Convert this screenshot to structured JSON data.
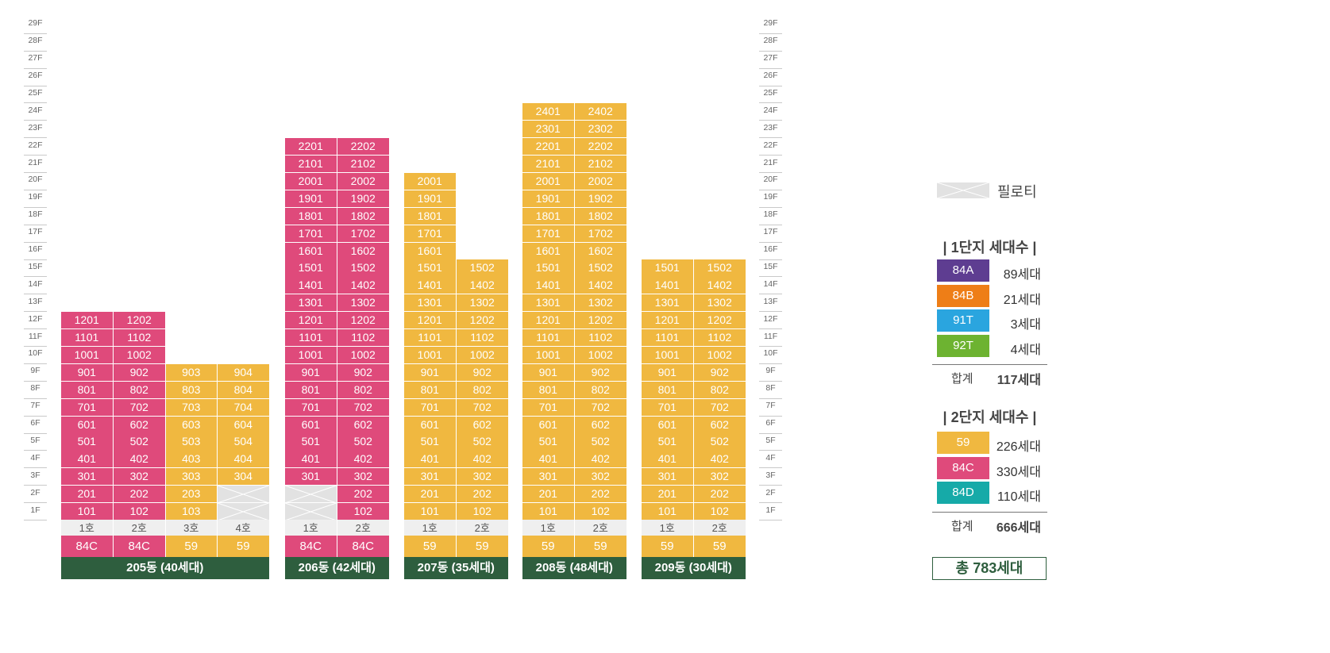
{
  "floor_labels": [
    "29F",
    "28F",
    "27F",
    "26F",
    "25F",
    "24F",
    "23F",
    "22F",
    "21F",
    "20F",
    "19F",
    "18F",
    "17F",
    "16F",
    "15F",
    "14F",
    "13F",
    "12F",
    "11F",
    "10F",
    "9F",
    "8F",
    "7F",
    "6F",
    "5F",
    "4F",
    "3F",
    "2F",
    "1F"
  ],
  "buildings": [
    {
      "name": "205동 (40세대)",
      "columns": [
        {
          "ho": "1호",
          "type": "84C",
          "top": 12,
          "piloti": []
        },
        {
          "ho": "2호",
          "type": "84C",
          "top": 12,
          "piloti": []
        },
        {
          "ho": "3호",
          "type": "59",
          "top": 9,
          "piloti": []
        },
        {
          "ho": "4호",
          "type": "59",
          "top": 9,
          "piloti": [
            1,
            2
          ]
        }
      ]
    },
    {
      "name": "206동 (42세대)",
      "columns": [
        {
          "ho": "1호",
          "type": "84C",
          "top": 22,
          "piloti": [
            1,
            2
          ]
        },
        {
          "ho": "2호",
          "type": "84C",
          "top": 22,
          "piloti": []
        }
      ]
    },
    {
      "name": "207동 (35세대)",
      "columns": [
        {
          "ho": "1호",
          "type": "59",
          "top": 20,
          "piloti": []
        },
        {
          "ho": "2호",
          "type": "59",
          "top": 15,
          "piloti": []
        }
      ]
    },
    {
      "name": "208동 (48세대)",
      "columns": [
        {
          "ho": "1호",
          "type": "59",
          "top": 24,
          "piloti": []
        },
        {
          "ho": "2호",
          "type": "59",
          "top": 24,
          "piloti": []
        }
      ]
    },
    {
      "name": "209동 (30세대)",
      "columns": [
        {
          "ho": "1호",
          "type": "59",
          "top": 15,
          "piloti": []
        },
        {
          "ho": "2호",
          "type": "59",
          "top": 15,
          "piloti": []
        }
      ]
    }
  ],
  "legend": {
    "piloti_label": "필로티",
    "group1": {
      "title": "| 1단지 세대수 |",
      "items": [
        {
          "type": "84A",
          "count": "89세대",
          "color": "#5e3d91"
        },
        {
          "type": "84B",
          "count": "21세대",
          "color": "#ee7e17"
        },
        {
          "type": "91T",
          "count": "3세대",
          "color": "#2aa5df"
        },
        {
          "type": "92T",
          "count": "4세대",
          "color": "#6db331"
        }
      ],
      "sum_label": "합계",
      "sum_value": "117세대"
    },
    "group2": {
      "title": "| 2단지 세대수 |",
      "items": [
        {
          "type": "59",
          "count": "226세대",
          "color": "#f0b840"
        },
        {
          "type": "84C",
          "count": "330세대",
          "color": "#df4a7b"
        },
        {
          "type": "84D",
          "count": "110세대",
          "color": "#16aaa8"
        }
      ],
      "sum_label": "합계",
      "sum_value": "666세대"
    },
    "total": "총 783세대"
  },
  "colors": {
    "59": "#f0b840",
    "84C": "#df4a7b",
    "84D": "#16aaa8",
    "building_bar": "#2e5e3e"
  }
}
